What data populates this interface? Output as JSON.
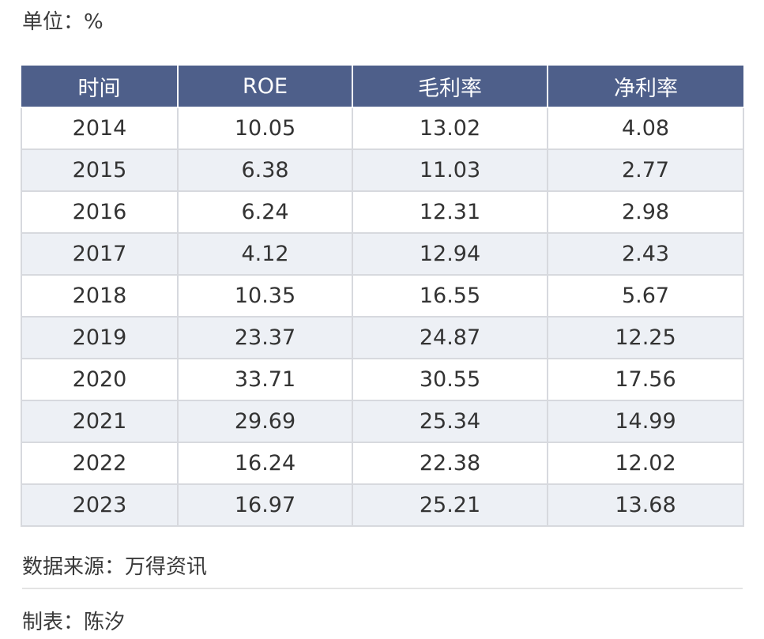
{
  "unit_label": "单位：%",
  "source_label": "数据来源：万得资讯",
  "author_label": "制表：陈汐",
  "colors": {
    "header_bg": "#4e5f8a",
    "header_text": "#ffffff",
    "stripe_bg": "#edf0f5",
    "border": "#d7d9de"
  },
  "chart_data": {
    "type": "table",
    "columns": [
      "时间",
      "ROE",
      "毛利率",
      "净利率"
    ],
    "rows": [
      [
        "2014",
        "10.05",
        "13.02",
        "4.08"
      ],
      [
        "2015",
        "6.38",
        "11.03",
        "2.77"
      ],
      [
        "2016",
        "6.24",
        "12.31",
        "2.98"
      ],
      [
        "2017",
        "4.12",
        "12.94",
        "2.43"
      ],
      [
        "2018",
        "10.35",
        "16.55",
        "5.67"
      ],
      [
        "2019",
        "23.37",
        "24.87",
        "12.25"
      ],
      [
        "2020",
        "33.71",
        "30.55",
        "17.56"
      ],
      [
        "2021",
        "29.69",
        "25.34",
        "14.99"
      ],
      [
        "2022",
        "16.24",
        "22.38",
        "12.02"
      ],
      [
        "2023",
        "16.97",
        "25.21",
        "13.68"
      ]
    ]
  }
}
